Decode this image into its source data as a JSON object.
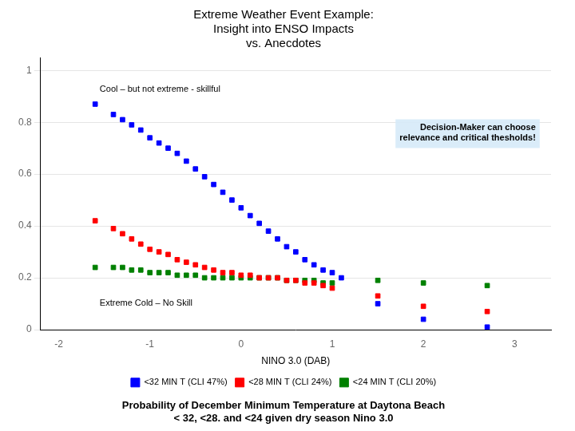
{
  "chart_data": {
    "type": "scatter",
    "title": "Extreme Weather Event Example:\nInsight into ENSO Impacts\nvs. Anecdotes",
    "xlabel": "NINO 3.0 (DAB)",
    "caption": "Probability of December Minimum Temperature at Daytona Beach\n< 32, <28. and <24 given dry season Nino 3.0",
    "annotations": [
      "Cool – but not extreme - skillful",
      "Extreme Cold – No Skill",
      "Decision-Maker can choose\nrelevance and critical thesholds!"
    ],
    "xlim": [
      -2.2,
      3.4
    ],
    "ylim": [
      0,
      1.05
    ],
    "xticks": [
      -2,
      -1,
      0,
      1,
      2,
      3
    ],
    "yticks": [
      0,
      0.2,
      0.4,
      0.6,
      0.8,
      1
    ],
    "grid": "y",
    "legend": "bottom",
    "marker": "square",
    "series": [
      {
        "name": "<32 MIN T (CLI 47%)",
        "color": "#0000FF",
        "x": [
          -1.6,
          -1.4,
          -1.3,
          -1.2,
          -1.1,
          -1.0,
          -0.9,
          -0.8,
          -0.7,
          -0.6,
          -0.5,
          -0.4,
          -0.3,
          -0.2,
          -0.1,
          0.0,
          0.1,
          0.2,
          0.3,
          0.4,
          0.5,
          0.6,
          0.7,
          0.8,
          0.9,
          1.0,
          1.1,
          1.5,
          2.0,
          2.7
        ],
        "values": [
          0.87,
          0.83,
          0.81,
          0.79,
          0.77,
          0.74,
          0.72,
          0.7,
          0.68,
          0.65,
          0.62,
          0.59,
          0.56,
          0.53,
          0.5,
          0.47,
          0.44,
          0.41,
          0.38,
          0.35,
          0.32,
          0.3,
          0.27,
          0.25,
          0.23,
          0.22,
          0.2,
          0.1,
          0.04,
          0.01
        ]
      },
      {
        "name": "<28 MIN T (CLI 24%)",
        "color": "#FF0000",
        "x": [
          -1.6,
          -1.4,
          -1.3,
          -1.2,
          -1.1,
          -1.0,
          -0.9,
          -0.8,
          -0.7,
          -0.6,
          -0.5,
          -0.4,
          -0.3,
          -0.2,
          -0.1,
          0.0,
          0.1,
          0.2,
          0.3,
          0.4,
          0.5,
          0.6,
          0.7,
          0.8,
          0.9,
          1.0,
          1.5,
          2.0,
          2.7
        ],
        "values": [
          0.42,
          0.39,
          0.37,
          0.35,
          0.33,
          0.31,
          0.3,
          0.29,
          0.27,
          0.26,
          0.25,
          0.24,
          0.23,
          0.22,
          0.22,
          0.21,
          0.21,
          0.2,
          0.2,
          0.2,
          0.19,
          0.19,
          0.18,
          0.18,
          0.17,
          0.16,
          0.13,
          0.09,
          0.07
        ]
      },
      {
        "name": "<24 MIN T (CLI 20%)",
        "color": "#008000",
        "x": [
          -1.6,
          -1.4,
          -1.3,
          -1.2,
          -1.1,
          -1.0,
          -0.9,
          -0.8,
          -0.7,
          -0.6,
          -0.5,
          -0.4,
          -0.3,
          -0.2,
          -0.1,
          0.0,
          0.1,
          0.2,
          0.3,
          0.4,
          0.5,
          0.6,
          0.7,
          0.8,
          0.9,
          1.0,
          1.5,
          2.0,
          2.7
        ],
        "values": [
          0.24,
          0.24,
          0.24,
          0.23,
          0.23,
          0.22,
          0.22,
          0.22,
          0.21,
          0.21,
          0.21,
          0.2,
          0.2,
          0.2,
          0.2,
          0.2,
          0.2,
          0.2,
          0.2,
          0.2,
          0.19,
          0.19,
          0.19,
          0.19,
          0.18,
          0.18,
          0.19,
          0.18,
          0.17
        ]
      }
    ]
  }
}
